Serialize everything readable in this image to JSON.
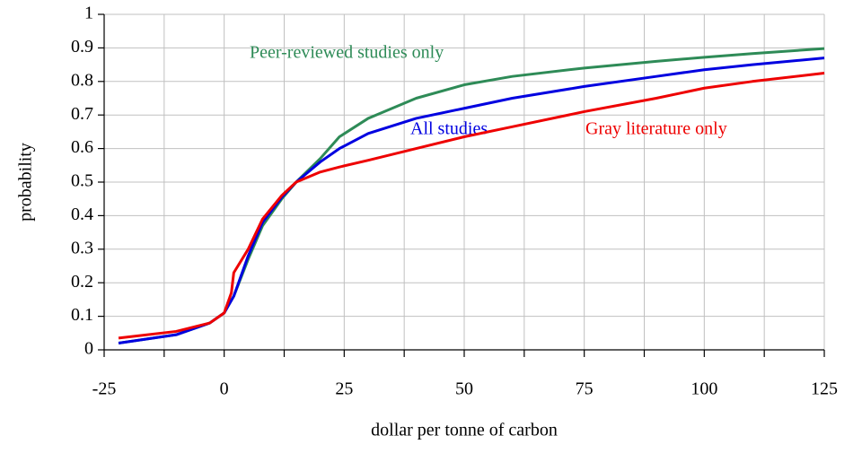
{
  "chart_data": {
    "type": "line",
    "x_label": "dollar per tonne of carbon",
    "y_label": "probability",
    "xlim": [
      -25,
      125
    ],
    "xticks": [
      -25,
      0,
      25,
      50,
      75,
      100,
      125
    ],
    "xminorticks": [
      -12.5,
      12.5,
      37.5,
      62.5,
      87.5,
      112.5
    ],
    "ylim": [
      0,
      1
    ],
    "yticks": [
      0,
      0.1,
      0.2,
      0.3,
      0.4,
      0.5,
      0.6,
      0.7,
      0.8,
      0.9,
      1
    ],
    "grid": true,
    "series": [
      {
        "name": "Peer-reviewed studies only",
        "color": "#2e8b57",
        "x": [
          -22,
          -10,
          -3,
          0,
          2,
          5,
          8,
          12,
          15,
          20,
          24,
          30,
          40,
          50,
          60,
          75,
          90,
          100,
          110,
          125
        ],
        "values": [
          0.02,
          0.045,
          0.08,
          0.11,
          0.16,
          0.27,
          0.37,
          0.45,
          0.5,
          0.57,
          0.635,
          0.69,
          0.75,
          0.79,
          0.815,
          0.84,
          0.86,
          0.872,
          0.883,
          0.898
        ]
      },
      {
        "name": "All studies",
        "color": "#0000e0",
        "x": [
          -22,
          -10,
          -3,
          0,
          2,
          5,
          8,
          12,
          15,
          20,
          24,
          30,
          40,
          50,
          60,
          75,
          90,
          100,
          110,
          125
        ],
        "values": [
          0.02,
          0.045,
          0.08,
          0.11,
          0.16,
          0.28,
          0.38,
          0.455,
          0.5,
          0.56,
          0.6,
          0.645,
          0.69,
          0.72,
          0.75,
          0.785,
          0.815,
          0.835,
          0.85,
          0.87
        ]
      },
      {
        "name": "Gray literature only",
        "color": "#ee0000",
        "x": [
          -22,
          -10,
          -3,
          0,
          1.5,
          2,
          5,
          8,
          12,
          15,
          20,
          24,
          30,
          40,
          50,
          60,
          75,
          90,
          100,
          110,
          125
        ],
        "values": [
          0.035,
          0.055,
          0.08,
          0.11,
          0.17,
          0.23,
          0.3,
          0.39,
          0.46,
          0.5,
          0.53,
          0.545,
          0.565,
          0.6,
          0.635,
          0.665,
          0.71,
          0.75,
          0.78,
          0.8,
          0.825
        ]
      }
    ]
  }
}
